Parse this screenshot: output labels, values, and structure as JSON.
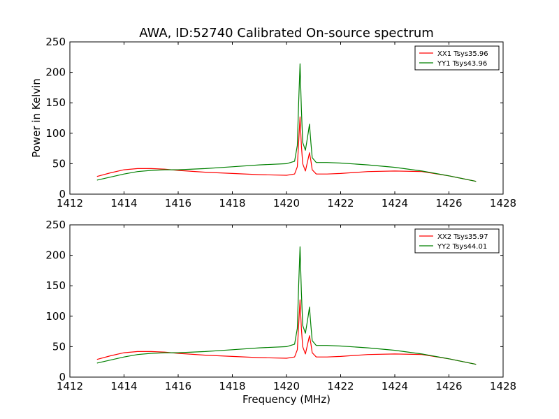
{
  "figure": {
    "title": "AWA, ID:52740 Calibrated On-source spectrum"
  },
  "chart_data": [
    {
      "type": "line",
      "title": "AWA, ID:52740 Calibrated On-source spectrum",
      "xlabel": "",
      "ylabel": "Power in Kelvin",
      "xlim": [
        1412,
        1428
      ],
      "ylim": [
        0,
        250
      ],
      "xticks": [
        1412,
        1414,
        1416,
        1418,
        1420,
        1422,
        1424,
        1426,
        1428
      ],
      "yticks": [
        0,
        50,
        100,
        150,
        200,
        250
      ],
      "grid": false,
      "legend": "top-right",
      "series": [
        {
          "name": "XX1 Tsys35.96",
          "color": "#ff0000",
          "x": [
            1413.0,
            1413.5,
            1414.0,
            1414.5,
            1415.0,
            1415.5,
            1416.0,
            1417.0,
            1418.0,
            1419.0,
            1420.0,
            1420.3,
            1420.4,
            1420.45,
            1420.5,
            1420.55,
            1420.6,
            1420.7,
            1420.8,
            1420.85,
            1420.9,
            1420.95,
            1421.1,
            1421.5,
            1422.0,
            1423.0,
            1424.0,
            1425.0,
            1426.0,
            1427.0
          ],
          "y": [
            29,
            35,
            40,
            42,
            42,
            41,
            39,
            36,
            34,
            32,
            31,
            33,
            45,
            85,
            127,
            80,
            50,
            38,
            58,
            68,
            55,
            40,
            33,
            33,
            34,
            37,
            38,
            37,
            30,
            21
          ]
        },
        {
          "name": "YY1 Tsys43.96",
          "color": "#008000",
          "x": [
            1413.0,
            1413.5,
            1414.0,
            1414.5,
            1415.0,
            1415.5,
            1416.0,
            1417.0,
            1418.0,
            1419.0,
            1420.0,
            1420.3,
            1420.4,
            1420.45,
            1420.5,
            1420.55,
            1420.6,
            1420.7,
            1420.8,
            1420.85,
            1420.9,
            1420.95,
            1421.1,
            1421.5,
            1422.0,
            1423.0,
            1424.0,
            1425.0,
            1426.0,
            1427.0
          ],
          "y": [
            23,
            28,
            33,
            37,
            39,
            40,
            40,
            42,
            45,
            48,
            50,
            54,
            80,
            150,
            214,
            140,
            85,
            72,
            100,
            115,
            85,
            60,
            52,
            52,
            51,
            48,
            44,
            38,
            30,
            21
          ]
        }
      ]
    },
    {
      "type": "line",
      "title": "",
      "xlabel": "Frequency (MHz)",
      "ylabel": "",
      "xlim": [
        1412,
        1428
      ],
      "ylim": [
        0,
        250
      ],
      "xticks": [
        1412,
        1414,
        1416,
        1418,
        1420,
        1422,
        1424,
        1426,
        1428
      ],
      "yticks": [
        0,
        50,
        100,
        150,
        200,
        250
      ],
      "grid": false,
      "legend": "top-right",
      "series": [
        {
          "name": "XX2 Tsys35.97",
          "color": "#ff0000",
          "x": [
            1413.0,
            1413.5,
            1414.0,
            1414.5,
            1415.0,
            1415.5,
            1416.0,
            1417.0,
            1418.0,
            1419.0,
            1420.0,
            1420.3,
            1420.4,
            1420.45,
            1420.5,
            1420.55,
            1420.6,
            1420.7,
            1420.8,
            1420.85,
            1420.9,
            1420.95,
            1421.1,
            1421.5,
            1422.0,
            1423.0,
            1424.0,
            1425.0,
            1426.0,
            1427.0
          ],
          "y": [
            29,
            35,
            40,
            42,
            42,
            41,
            39,
            36,
            34,
            32,
            31,
            33,
            45,
            85,
            127,
            80,
            50,
            38,
            58,
            68,
            55,
            40,
            33,
            33,
            34,
            37,
            38,
            37,
            30,
            21
          ]
        },
        {
          "name": "YY2 Tsys44.01",
          "color": "#008000",
          "x": [
            1413.0,
            1413.5,
            1414.0,
            1414.5,
            1415.0,
            1415.5,
            1416.0,
            1417.0,
            1418.0,
            1419.0,
            1420.0,
            1420.3,
            1420.4,
            1420.45,
            1420.5,
            1420.55,
            1420.6,
            1420.7,
            1420.8,
            1420.85,
            1420.9,
            1420.95,
            1421.1,
            1421.5,
            1422.0,
            1423.0,
            1424.0,
            1425.0,
            1426.0,
            1427.0
          ],
          "y": [
            23,
            28,
            33,
            37,
            39,
            40,
            40,
            42,
            45,
            48,
            50,
            54,
            80,
            150,
            214,
            140,
            85,
            72,
            100,
            115,
            85,
            60,
            52,
            52,
            51,
            48,
            44,
            38,
            30,
            21
          ]
        }
      ]
    }
  ]
}
